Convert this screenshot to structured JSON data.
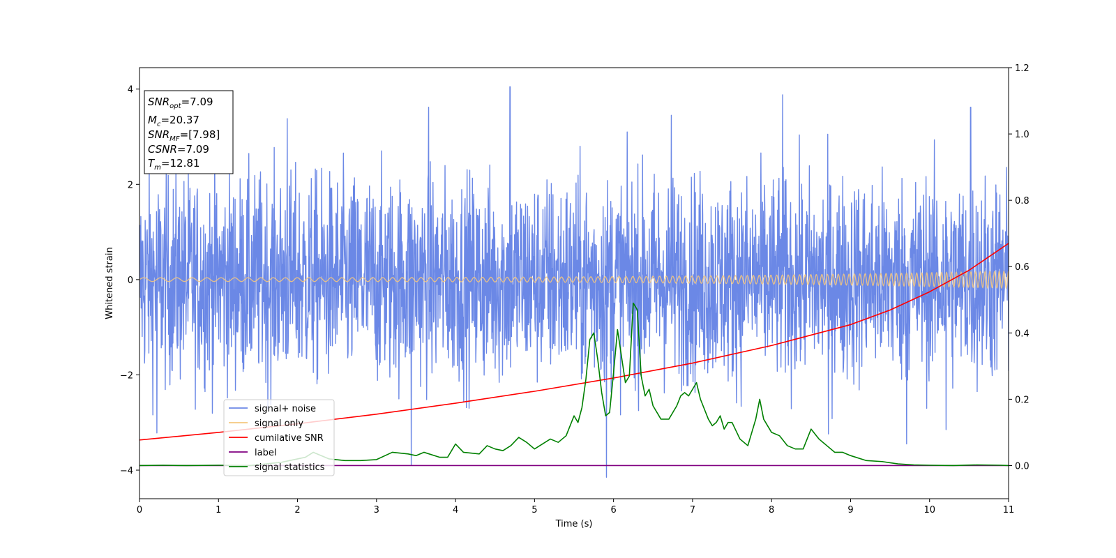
{
  "chart_data": {
    "type": "line",
    "title": "",
    "xlabel": "Time (s)",
    "ylabel": "Whitened strain",
    "xlim": [
      0,
      11
    ],
    "ylim_left": [
      -4.6,
      4.45
    ],
    "ylim_right": [
      -0.1,
      1.2
    ],
    "x_ticks": [
      "0",
      "1",
      "2",
      "3",
      "4",
      "5",
      "6",
      "7",
      "8",
      "9",
      "10",
      "11"
    ],
    "y_ticks_left": [
      "−4",
      "−2",
      "0",
      "2",
      "4"
    ],
    "y_ticks_right": [
      "0.0",
      "0.2",
      "0.4",
      "0.6",
      "0.8",
      "1.0",
      "1.2"
    ],
    "grid": false,
    "legend_position": "lower-left",
    "series": [
      {
        "name": "signal+ noise",
        "axis": "left",
        "color": "#6b88e6",
        "kind": "noise",
        "typical_amplitude": 2.4,
        "extreme_peaks": [
          {
            "x": 4.69,
            "y": 4.05
          },
          {
            "x": 8.14,
            "y": 3.88
          },
          {
            "x": 3.66,
            "y": 3.62
          },
          {
            "x": 3.44,
            "y": -3.9
          },
          {
            "x": 5.91,
            "y": -4.15
          },
          {
            "x": 1.87,
            "y": 3.38
          },
          {
            "x": 6.73,
            "y": 3.45
          },
          {
            "x": 10.52,
            "y": 3.62
          },
          {
            "x": 0.22,
            "y": -3.22
          },
          {
            "x": 10.21,
            "y": -3.15
          },
          {
            "x": 9.71,
            "y": -3.45
          },
          {
            "x": 8.72,
            "y": -3.24
          }
        ]
      },
      {
        "name": "signal only",
        "axis": "left",
        "color": "#f5c77e",
        "kind": "chirp",
        "x_start": 0,
        "x_end": 11,
        "amplitude_start": 0.04,
        "amplitude_end": 0.18,
        "frequency_start_hz": 4.5,
        "frequency_end_hz": 17
      },
      {
        "name": "cumilative SNR",
        "axis": "right",
        "color": "#ff0000",
        "x": [
          0,
          1,
          2,
          3,
          4,
          5,
          6,
          7,
          8,
          9,
          9.5,
          10,
          10.5,
          11
        ],
        "values": [
          0.077,
          0.1,
          0.126,
          0.155,
          0.188,
          0.224,
          0.264,
          0.309,
          0.362,
          0.425,
          0.469,
          0.524,
          0.589,
          0.67
        ]
      },
      {
        "name": "label",
        "axis": "right",
        "color": "#800080",
        "x": [
          0,
          11
        ],
        "values": [
          0.0,
          0.0
        ]
      },
      {
        "name": "signal statistics",
        "axis": "right",
        "color": "#008000",
        "x": [
          0,
          0.3,
          0.6,
          1.0,
          1.4,
          1.8,
          2.0,
          2.1,
          2.2,
          2.3,
          2.4,
          2.6,
          2.8,
          3.0,
          3.2,
          3.4,
          3.5,
          3.6,
          3.8,
          3.9,
          4.0,
          4.1,
          4.3,
          4.4,
          4.5,
          4.6,
          4.7,
          4.8,
          4.9,
          5.0,
          5.1,
          5.2,
          5.3,
          5.4,
          5.5,
          5.55,
          5.6,
          5.65,
          5.7,
          5.75,
          5.8,
          5.85,
          5.9,
          5.95,
          6.0,
          6.05,
          6.1,
          6.15,
          6.2,
          6.25,
          6.3,
          6.35,
          6.4,
          6.45,
          6.5,
          6.6,
          6.7,
          6.8,
          6.85,
          6.9,
          6.95,
          7.0,
          7.05,
          7.1,
          7.2,
          7.25,
          7.3,
          7.35,
          7.4,
          7.45,
          7.5,
          7.6,
          7.7,
          7.8,
          7.85,
          7.9,
          8.0,
          8.1,
          8.2,
          8.3,
          8.4,
          8.5,
          8.6,
          8.7,
          8.8,
          8.9,
          9.0,
          9.2,
          9.4,
          9.6,
          9.8,
          10.0,
          10.3,
          10.6,
          10.9,
          11.0
        ],
        "values": [
          0.0,
          0.001,
          0.0,
          0.001,
          0.0,
          0.01,
          0.02,
          0.025,
          0.04,
          0.03,
          0.02,
          0.015,
          0.015,
          0.018,
          0.04,
          0.035,
          0.03,
          0.04,
          0.025,
          0.025,
          0.065,
          0.04,
          0.035,
          0.06,
          0.05,
          0.045,
          0.06,
          0.085,
          0.07,
          0.05,
          0.065,
          0.08,
          0.07,
          0.09,
          0.15,
          0.13,
          0.175,
          0.26,
          0.38,
          0.4,
          0.32,
          0.22,
          0.15,
          0.16,
          0.28,
          0.41,
          0.33,
          0.25,
          0.27,
          0.49,
          0.47,
          0.27,
          0.21,
          0.23,
          0.18,
          0.14,
          0.14,
          0.18,
          0.21,
          0.22,
          0.21,
          0.23,
          0.25,
          0.2,
          0.14,
          0.12,
          0.13,
          0.15,
          0.11,
          0.13,
          0.13,
          0.08,
          0.06,
          0.14,
          0.2,
          0.14,
          0.1,
          0.09,
          0.06,
          0.05,
          0.05,
          0.11,
          0.08,
          0.06,
          0.04,
          0.04,
          0.03,
          0.015,
          0.012,
          0.005,
          0.002,
          0.001,
          0.0,
          0.002,
          0.001,
          0.0
        ]
      }
    ],
    "annotation": [
      {
        "base": "SNR",
        "sub": "opt",
        "text": "=7.09"
      },
      {
        "base": "M",
        "sub": "c",
        "text": "=20.37"
      },
      {
        "base": "SNR",
        "sub": "MF",
        "text": "=[7.98]"
      },
      {
        "base": "CSNR",
        "sub": "",
        "text": "=7.09"
      },
      {
        "base": "T",
        "sub": "m",
        "text": "=12.81"
      }
    ]
  }
}
